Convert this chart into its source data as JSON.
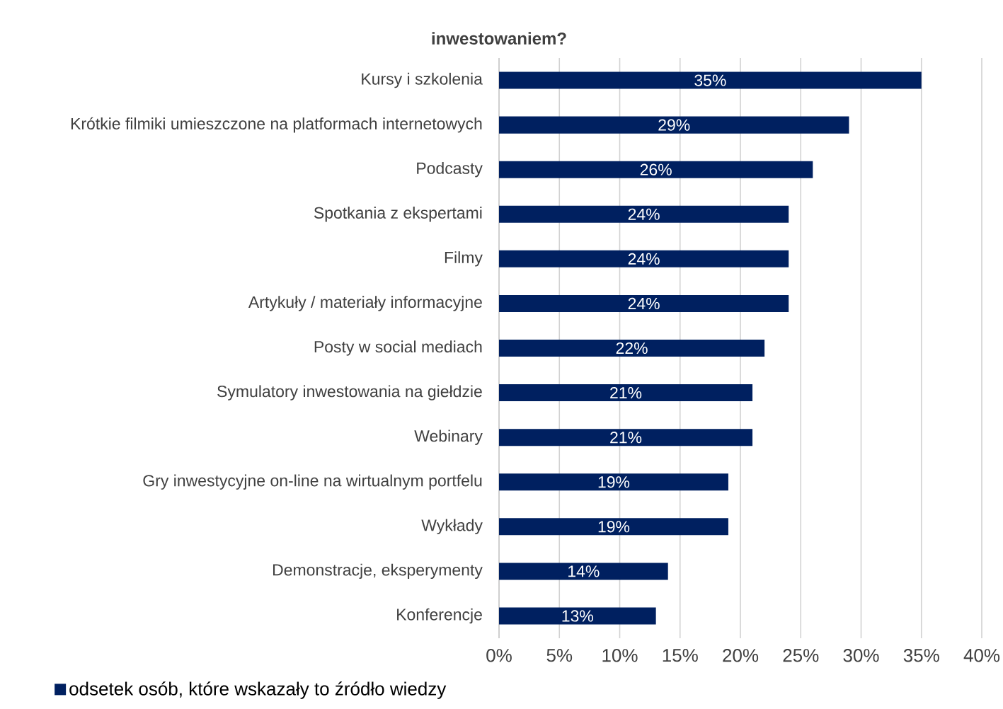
{
  "chart_data": {
    "type": "bar",
    "orientation": "horizontal",
    "title": "inwestowaniem?",
    "categories": [
      "Kursy i szkolenia",
      "Krótkie filmiki umieszczone na platformach internetowych",
      "Podcasty",
      "Spotkania z ekspertami",
      "Filmy",
      "Artykuły / materiały informacyjne",
      "Posty w social mediach",
      "Symulatory inwestowania na giełdzie",
      "Webinary",
      "Gry inwestycyjne on-line na wirtualnym portfelu",
      "Wykłady",
      "Demonstracje, eksperymenty",
      "Konferencje"
    ],
    "series": [
      {
        "name": "odsetek osób, które wskazały to źródło wiedzy",
        "color": "#002060",
        "values": [
          35,
          29,
          26,
          24,
          24,
          24,
          22,
          21,
          21,
          19,
          19,
          14,
          13
        ],
        "value_labels": [
          "35%",
          "29%",
          "26%",
          "24%",
          "24%",
          "24%",
          "22%",
          "21%",
          "21%",
          "19%",
          "19%",
          "14%",
          "13%"
        ]
      }
    ],
    "xlim": [
      0,
      40
    ],
    "xticks": [
      {
        "value": 0,
        "label": "0%"
      },
      {
        "value": 5,
        "label": "5%"
      },
      {
        "value": 10,
        "label": "10%"
      },
      {
        "value": 15,
        "label": "15%"
      },
      {
        "value": 20,
        "label": "20%"
      },
      {
        "value": 25,
        "label": "25%"
      },
      {
        "value": 30,
        "label": "30%"
      },
      {
        "value": 35,
        "label": "35%"
      },
      {
        "value": 40,
        "label": "40%"
      }
    ],
    "grid": "x",
    "legend": "bottom left"
  }
}
